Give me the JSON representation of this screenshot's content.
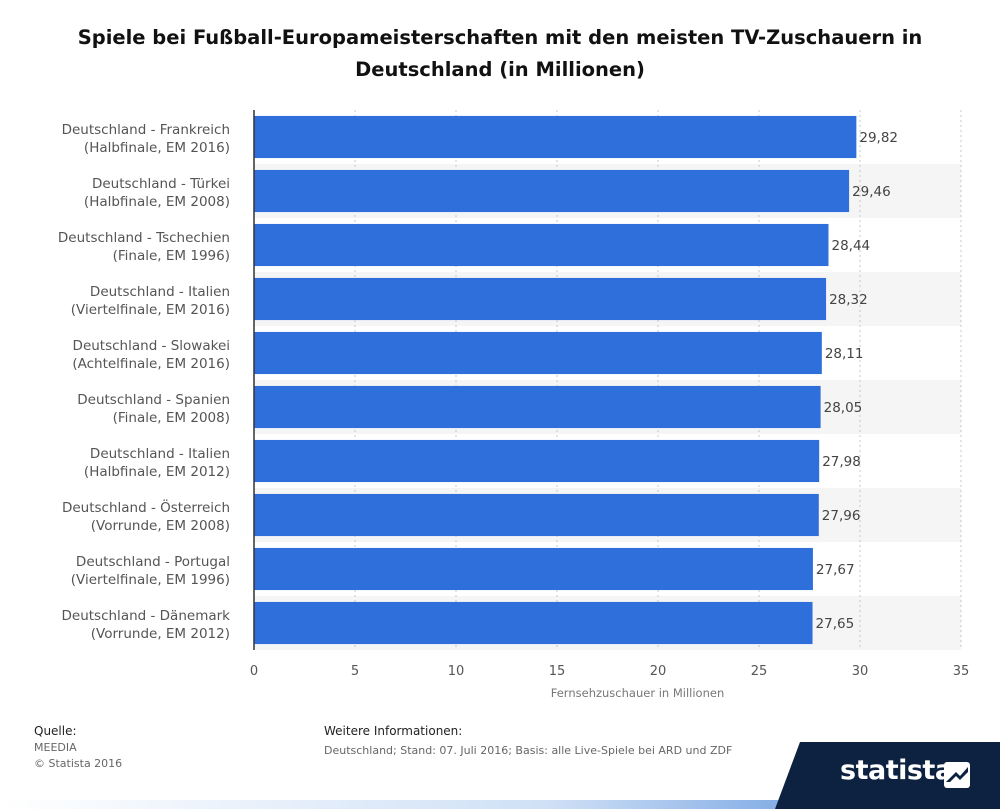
{
  "title": "Spiele bei Fußball-Europameisterschaften mit den meisten TV-Zuschauern in Deutschland (in Millionen)",
  "chart_data": {
    "type": "bar",
    "orientation": "horizontal",
    "categories": [
      [
        "Deutschland - Frankreich",
        "(Halbfinale, EM 2016)"
      ],
      [
        "Deutschland - Türkei",
        "(Halbfinale, EM 2008)"
      ],
      [
        "Deutschland - Tschechien",
        "(Finale, EM 1996)"
      ],
      [
        "Deutschland - Italien",
        "(Viertelfinale, EM 2016)"
      ],
      [
        "Deutschland - Slowakei",
        "(Achtelfinale, EM 2016)"
      ],
      [
        "Deutschland - Spanien",
        "(Finale, EM 2008)"
      ],
      [
        "Deutschland - Italien",
        "(Halbfinale, EM 2012)"
      ],
      [
        "Deutschland - Österreich",
        "(Vorrunde, EM 2008)"
      ],
      [
        "Deutschland - Portugal",
        "(Viertelfinale, EM 1996)"
      ],
      [
        "Deutschland - Dänemark",
        "(Vorrunde, EM 2012)"
      ]
    ],
    "values": [
      29.82,
      29.46,
      28.44,
      28.32,
      28.11,
      28.05,
      27.98,
      27.96,
      27.67,
      27.65
    ],
    "value_labels": [
      "29,82",
      "29,46",
      "28,44",
      "28,32",
      "28,11",
      "28,05",
      "27,98",
      "27,96",
      "27,67",
      "27,65"
    ],
    "xlabel": "Fernsehzuschauer in Millionen",
    "xlim": [
      0,
      35
    ],
    "xticks": [
      0,
      5,
      10,
      15,
      20,
      25,
      30,
      35
    ],
    "bar_color": "#2f6fdc",
    "grid": true
  },
  "footer": {
    "source_label": "Quelle:",
    "source_lines": [
      "MEEDIA",
      "© Statista 2016"
    ],
    "info_label": "Weitere Informationen:",
    "info_text": "Deutschland; Stand: 07. Juli 2016; Basis: alle Live-Spiele bei ARD und ZDF"
  },
  "brand": "statista"
}
